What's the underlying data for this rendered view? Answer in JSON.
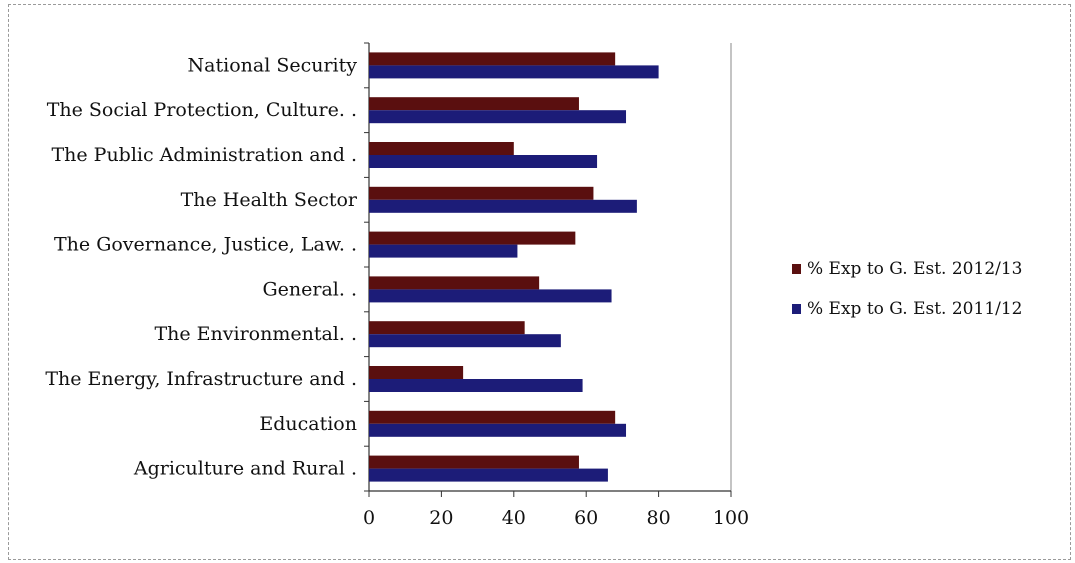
{
  "chart_data": {
    "type": "bar",
    "orientation": "horizontal",
    "categories": [
      "National Security",
      "The Social Protection, Culture. .",
      "The Public Administration and .",
      "The Health Sector",
      "The Governance, Justice, Law. .",
      "General. .",
      "The Environmental. .",
      "The Energy, Infrastructure and .",
      "Education",
      "Agriculture and Rural ."
    ],
    "series": [
      {
        "name": "% Exp to G. Est. 2012/13",
        "color": "#5a0f0f",
        "values": [
          68,
          58,
          40,
          62,
          57,
          47,
          43,
          26,
          68,
          58
        ]
      },
      {
        "name": "% Exp to G. Est. 2011/12",
        "color": "#1c1c78",
        "values": [
          80,
          71,
          63,
          74,
          41,
          67,
          53,
          59,
          71,
          66
        ]
      }
    ],
    "xlim": [
      0,
      100
    ],
    "xticks": [
      0,
      20,
      40,
      60,
      80,
      100
    ],
    "grid": "vertical line at 100 only",
    "legend_position": "right"
  }
}
